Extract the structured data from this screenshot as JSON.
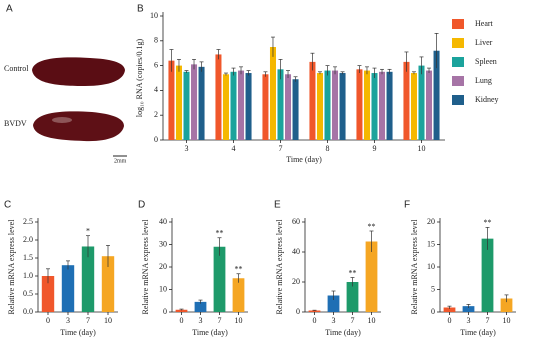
{
  "panel_a": {
    "label": "A",
    "images": [
      {
        "label": "Control"
      },
      {
        "label": "BVDV"
      }
    ],
    "scale_bar": "2mm"
  },
  "chart_data": [
    {
      "type": "grouped-bar",
      "label": "B",
      "xlabel": "Time (day)",
      "ylabel": "log₁₀ RNA (copies/0.1g)",
      "categories": [
        "3",
        "4",
        "7",
        "8",
        "9",
        "10"
      ],
      "series": [
        {
          "name": "Heart",
          "color": "#f0572b",
          "values": [
            6.4,
            6.9,
            5.3,
            6.3,
            5.7,
            6.3
          ],
          "errors": [
            0.9,
            0.4,
            0.2,
            0.7,
            0.3,
            0.8
          ]
        },
        {
          "name": "Liver",
          "color": "#f5b800",
          "values": [
            6.0,
            5.3,
            7.5,
            5.4,
            5.6,
            5.4
          ],
          "errors": [
            0.5,
            0.1,
            0.8,
            0.1,
            0.3,
            0.1
          ]
        },
        {
          "name": "Spleen",
          "color": "#1ba39c",
          "values": [
            5.5,
            5.5,
            5.7,
            5.6,
            5.4,
            6.0
          ],
          "errors": [
            0.1,
            0.3,
            0.8,
            0.4,
            0.4,
            0.7
          ]
        },
        {
          "name": "Lung",
          "color": "#a674a6",
          "values": [
            6.1,
            5.6,
            5.3,
            5.6,
            5.5,
            5.6
          ],
          "errors": [
            0.4,
            0.3,
            0.3,
            0.3,
            0.2,
            0.2
          ]
        },
        {
          "name": "Kidney",
          "color": "#1f5f8b",
          "values": [
            5.9,
            5.4,
            4.9,
            5.4,
            5.5,
            7.2
          ],
          "errors": [
            0.4,
            0.2,
            0.2,
            0.1,
            0.2,
            1.4
          ]
        }
      ],
      "ylim": [
        0,
        10
      ],
      "yticks": [
        0,
        2,
        4,
        6,
        8,
        10
      ]
    },
    {
      "type": "bar",
      "label": "C",
      "xlabel": "Time (day)",
      "ylabel": "Relative mRNA express level",
      "categories": [
        "0",
        "3",
        "7",
        "10"
      ],
      "values": [
        1.0,
        1.3,
        1.82,
        1.55
      ],
      "errors": [
        0.2,
        0.12,
        0.3,
        0.3
      ],
      "colors": [
        "#f0572b",
        "#1f6fb4",
        "#1e9a6a",
        "#f5a623"
      ],
      "significance": [
        null,
        null,
        "*",
        null
      ],
      "ylim": [
        0,
        2.5
      ],
      "yticks": [
        {
          "value": 0,
          "label": "0.0"
        },
        0.5,
        {
          "value": 1,
          "label": "1.0"
        },
        1.5,
        {
          "value": 2,
          "label": "2.0"
        },
        2.5
      ]
    },
    {
      "type": "bar",
      "label": "D",
      "xlabel": "Time (day)",
      "ylabel": "Relative mRNA express level",
      "categories": [
        "0",
        "3",
        "7",
        "10"
      ],
      "values": [
        1,
        4.5,
        29,
        15
      ],
      "errors": [
        0.3,
        0.8,
        4,
        2
      ],
      "colors": [
        "#f0572b",
        "#1f6fb4",
        "#1e9a6a",
        "#f5a623"
      ],
      "significance": [
        null,
        null,
        "**",
        "**"
      ],
      "ylim": [
        0,
        40
      ],
      "yticks": [
        0,
        10,
        20,
        30,
        40
      ]
    },
    {
      "type": "bar",
      "label": "E",
      "xlabel": "Time (day)",
      "ylabel": "Relative mRNA express level",
      "categories": [
        "0",
        "3",
        "7",
        "10"
      ],
      "values": [
        1,
        11,
        20,
        47
      ],
      "errors": [
        0.2,
        3,
        3,
        7
      ],
      "colors": [
        "#f0572b",
        "#1f6fb4",
        "#1e9a6a",
        "#f5a623"
      ],
      "significance": [
        null,
        null,
        "**",
        "**"
      ],
      "ylim": [
        0,
        60
      ],
      "yticks": [
        0,
        20,
        40,
        60
      ]
    },
    {
      "type": "bar",
      "label": "F",
      "xlabel": "Time (day)",
      "ylabel": "Relative mRNA express level",
      "categories": [
        "0",
        "3",
        "7",
        "10"
      ],
      "values": [
        1,
        1.3,
        16.3,
        3
      ],
      "errors": [
        0.3,
        0.4,
        2.5,
        0.8
      ],
      "colors": [
        "#f0572b",
        "#1f6fb4",
        "#1e9a6a",
        "#f5a623"
      ],
      "significance": [
        null,
        null,
        "**",
        null
      ],
      "ylim": [
        0,
        20
      ],
      "yticks": [
        0,
        5,
        10,
        15,
        20
      ]
    }
  ]
}
